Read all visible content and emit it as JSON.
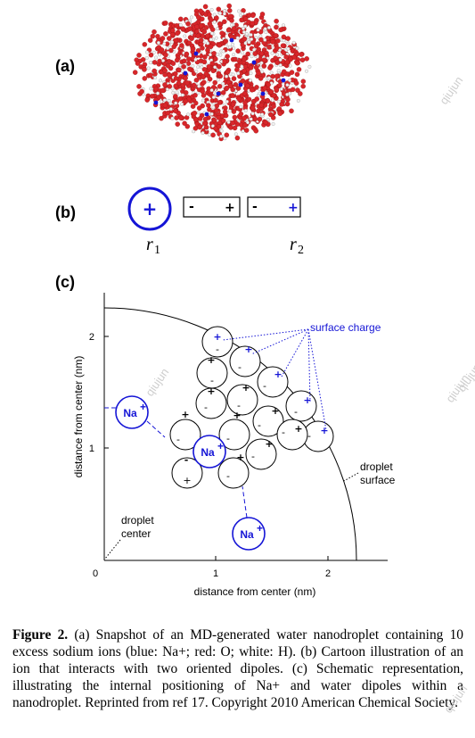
{
  "panels": {
    "a": {
      "label": "(a)"
    },
    "b": {
      "label": "(b)",
      "ion_sign": "+",
      "dipole_minus": "-",
      "dipole_plus": "+",
      "r1": "r",
      "r1_sub": "1",
      "r2": "r",
      "r2_sub": "2"
    },
    "c": {
      "label": "(c)"
    }
  },
  "plot": {
    "ylabel": "distance from center (nm)",
    "xlabel": "distance from center (nm)",
    "origin_label": "0",
    "x_ticks": [
      "1",
      "2"
    ],
    "y_ticks": [
      "1",
      "2"
    ],
    "surface_charge_label": "surface charge",
    "droplet_surface_label": [
      "droplet",
      "surface"
    ],
    "droplet_center_label": [
      "droplet",
      "center"
    ],
    "na_label": "Na",
    "na_sup": "+"
  },
  "caption": {
    "fig_label": "Figure 2.",
    "text": " (a) Snapshot of an MD-generated water nanodroplet containing 10 excess sodium ions (blue: Na+; red: O; white: H). (b) Cartoon illustration of an ion that interacts with two oriented dipoles. (c) Schematic representation, illustrating the internal positioning of Na+ and water dipoles within a nanodroplet. Reprinted from ref 17. Copyright 2010 American Chemical Society."
  },
  "watermarks": [
    "qiujun",
    "qiujun",
    "qiujun",
    "qiujun",
    "qiujun"
  ],
  "colors": {
    "ion_blue": "#1515d6",
    "oxygen_red": "#d8262a",
    "hydrogen_white": "#f2f2f2"
  }
}
